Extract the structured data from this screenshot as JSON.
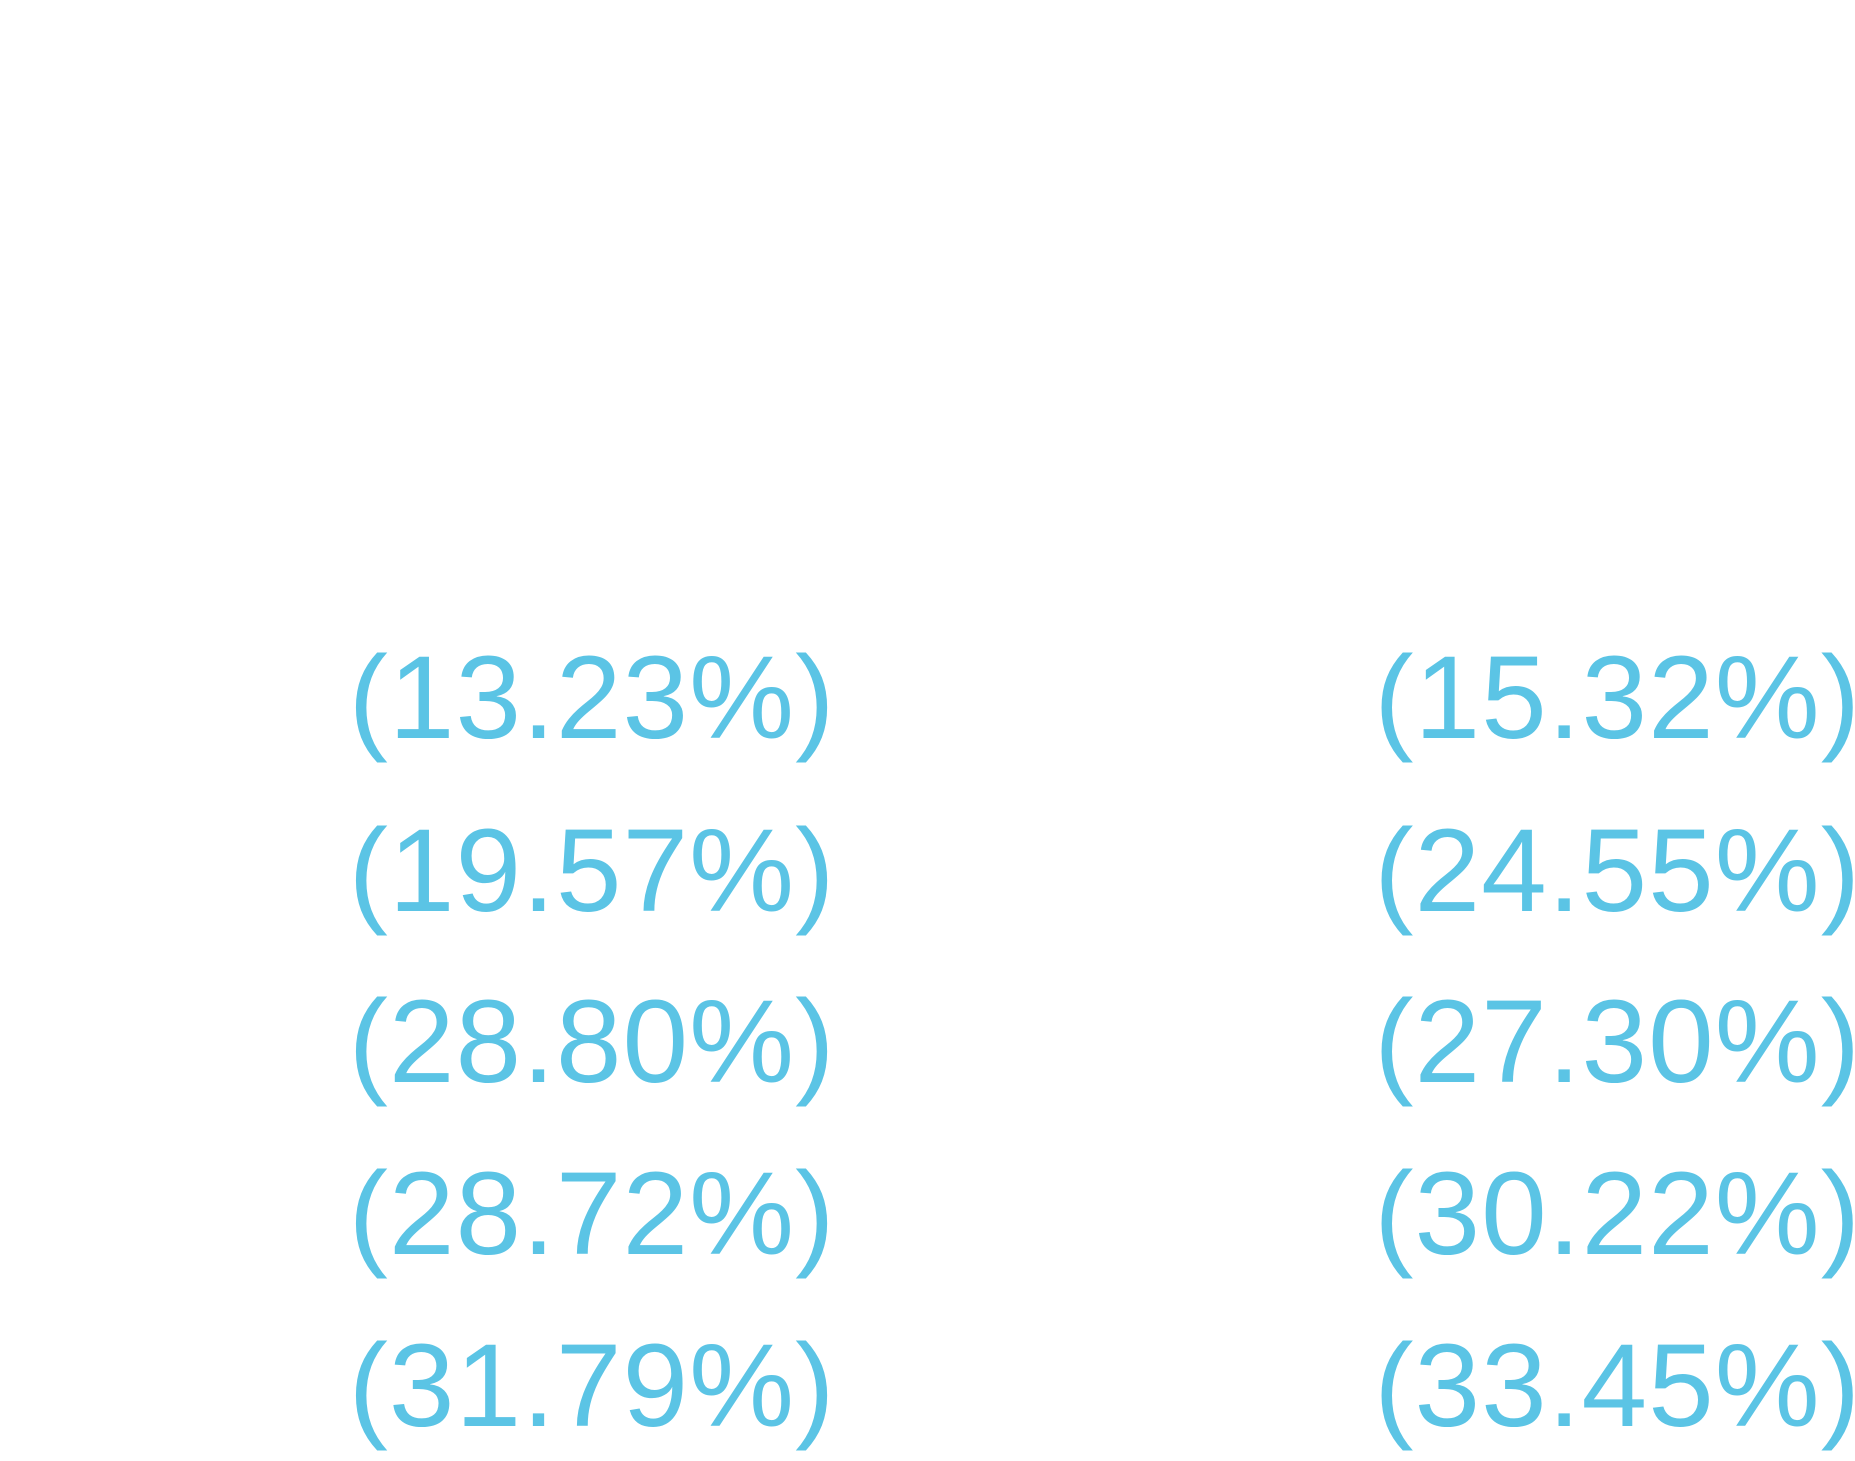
{
  "left_column": [
    "(13.23%)",
    "(19.57%)",
    "(28.80%)",
    "(28.72%)",
    "(31.79%)"
  ],
  "right_column": [
    "(15.32%)",
    "(24.55%)",
    "(27.30%)",
    "(30.22%)",
    "(33.45%)"
  ]
}
